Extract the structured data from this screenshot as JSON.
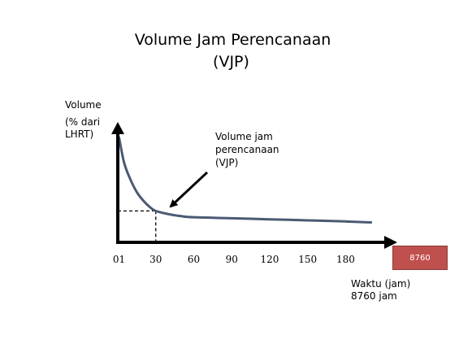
{
  "title_line1": "Volume Jam Perencanaan",
  "title_line2": "(VJP)",
  "ylabel_line1": "Volume",
  "ylabel_line2": "(% dari LHRT)",
  "annotation": "Volume jam perencanaan (VJP)",
  "xlabel_line1": "Waktu (jam)",
  "xlabel_line2": "8760 jam",
  "badge_text": "8760",
  "colors": {
    "curve": "#4a5a73",
    "axis": "#000000",
    "badge": "#c0504d"
  },
  "chart_data": {
    "type": "line",
    "title": "Volume Jam Perencanaan (VJP)",
    "xlabel": "Waktu (jam)",
    "ylabel": "Volume (% dari LHRT)",
    "x_tick_labels": [
      "01",
      "30",
      "60",
      "90",
      "120",
      "150",
      "180"
    ],
    "x": [
      1,
      5,
      10,
      15,
      20,
      25,
      30,
      40,
      50,
      60,
      90,
      120,
      150,
      180,
      200
    ],
    "y": [
      100,
      76,
      60,
      48,
      40,
      34,
      30,
      27,
      25,
      24,
      23,
      22,
      21,
      20,
      19
    ],
    "xlim": [
      0,
      215
    ],
    "ylim": [
      0,
      115
    ],
    "highlight_point": {
      "x": 30,
      "y": 30,
      "label": "Volume jam perencanaan (VJP)"
    },
    "grid": false,
    "legend": "none"
  }
}
